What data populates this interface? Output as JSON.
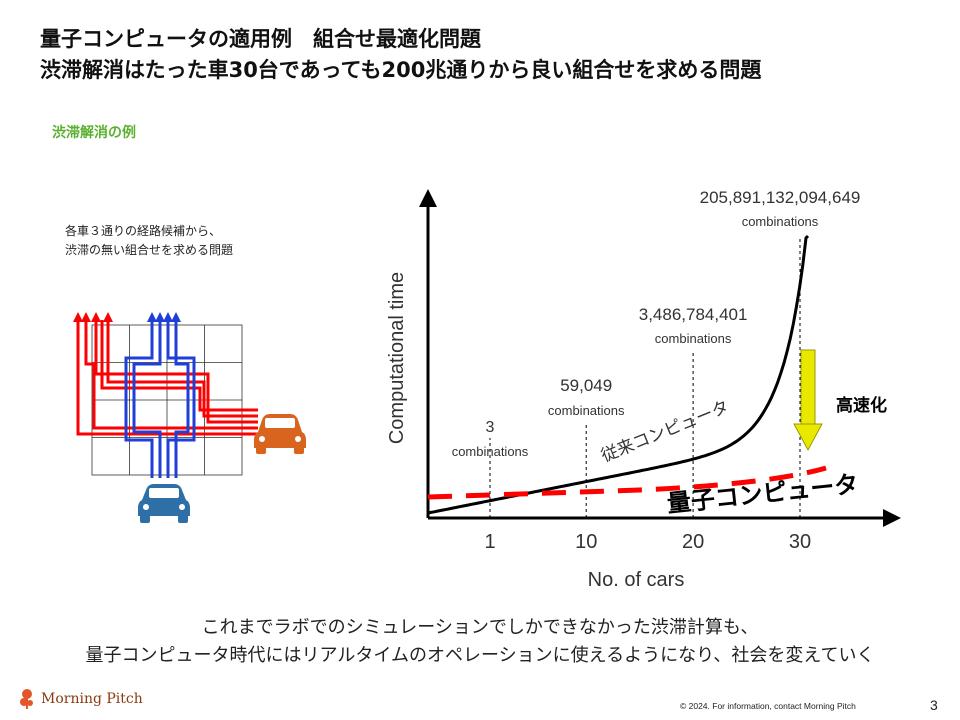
{
  "title": {
    "line1": "量子コンピュータの適用例　組合せ最適化問題",
    "line2": "渋滞解消はたった車30台であっても200兆通りから良い組合せを求める問題"
  },
  "example": {
    "label": "渋滞解消の例",
    "desc_line1": "各車３通りの経路候補から、",
    "desc_line2": "渋滞の無い組合せを求める問題"
  },
  "chart_data": {
    "type": "line",
    "xlabel": "No. of cars",
    "ylabel": "Computational time",
    "x_ticks": [
      "1",
      "10",
      "20",
      "30"
    ],
    "annotations": [
      {
        "x": 1,
        "value": "3",
        "unit": "combinations"
      },
      {
        "x": 10,
        "value": "59,049",
        "unit": "combinations"
      },
      {
        "x": 20,
        "value": "3,486,784,401",
        "unit": "combinations"
      },
      {
        "x": 30,
        "value": "205,891,132,094,649",
        "unit": "combinations"
      }
    ],
    "series": [
      {
        "name": "従来コンピュータ",
        "style": "solid",
        "color": "#000000"
      },
      {
        "name": "量子コンピュータ",
        "style": "dashed",
        "color": "#ff0000"
      }
    ],
    "speedup_label": "高速化",
    "speedup_arrow_color": "#e8e800"
  },
  "caption": {
    "line1": "これまでラボでのシミュレーションでしかできなかった渋滞計算も、",
    "line2": "量子コンピュータ時代にはリアルタイムのオペレーションに使えるようになり、社会を変えていく"
  },
  "footer": {
    "copyright": "© 2024.  For information,  contact Morning  Pitch",
    "page": "3",
    "logo_text": "Morning Pitch"
  },
  "colors": {
    "accent_green": "#5cb030",
    "route_red": "#ff0000",
    "route_blue": "#1f3fd6",
    "car_orange": "#d8641e",
    "car_blue": "#2f6fa7"
  }
}
